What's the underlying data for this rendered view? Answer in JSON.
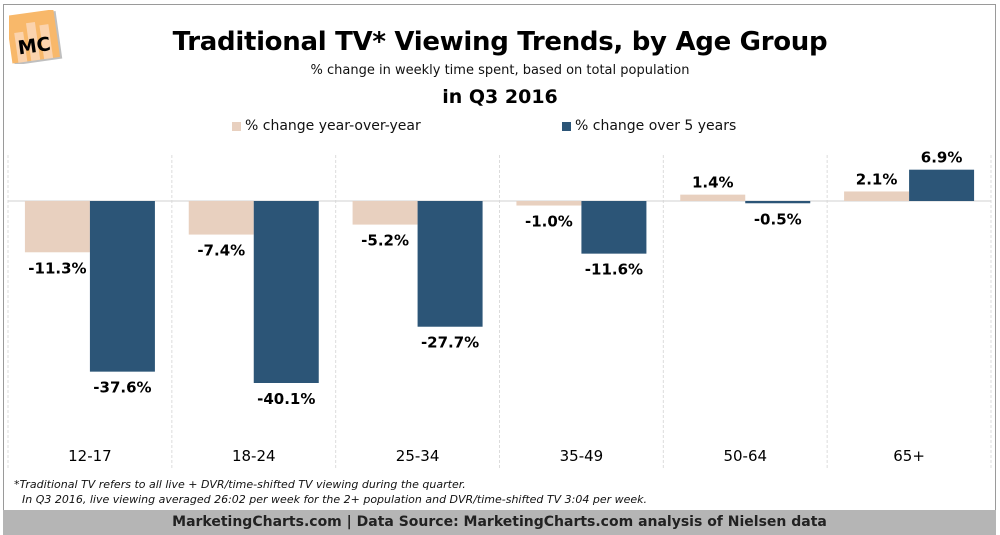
{
  "header": {
    "logo_text": "MC",
    "title": "Traditional TV* Viewing Trends, by Age Group",
    "subtitle": "% change in weekly time spent, based on total population",
    "period": "in Q3 2016"
  },
  "colors": {
    "yoy": "#e8d0bf",
    "five_year": "#2c5577",
    "logo_bg": "#f8b86a",
    "footer_bg": "#b5b5b5"
  },
  "chart_data": {
    "type": "bar",
    "title": "Traditional TV* Viewing Trends, by Age Group",
    "subtitle": "% change in weekly time spent, based on total population — in Q3 2016",
    "xlabel": "",
    "ylabel": "",
    "categories": [
      "12-17",
      "18-24",
      "25-34",
      "35-49",
      "50-64",
      "65+"
    ],
    "series": [
      {
        "name": "% change year-over-year",
        "values": [
          -11.3,
          -7.4,
          -5.2,
          -1.0,
          1.4,
          2.1
        ],
        "labels": [
          "-11.3%",
          "-7.4%",
          "-5.2%",
          "-1.0%",
          "1.4%",
          "2.1%"
        ]
      },
      {
        "name": "% change over 5 years",
        "values": [
          -37.6,
          -40.1,
          -27.7,
          -11.6,
          -0.5,
          6.9
        ],
        "labels": [
          "-37.6%",
          "-40.1%",
          "-27.7%",
          "-11.6%",
          "-0.5%",
          "6.9%"
        ]
      }
    ],
    "ylim": [
      -50,
      10
    ],
    "grid": "vertical dashed category separators",
    "legend": "top-center"
  },
  "notes": [
    "*Traditional TV refers to all live + DVR/time-shifted TV viewing during the quarter.",
    "In Q3 2016, live viewing averaged 26:02 per week for the 2+ population and DVR/time-shifted TV 3:04 per week."
  ],
  "footer": "MarketingCharts.com | Data Source: MarketingCharts.com analysis of Nielsen data"
}
